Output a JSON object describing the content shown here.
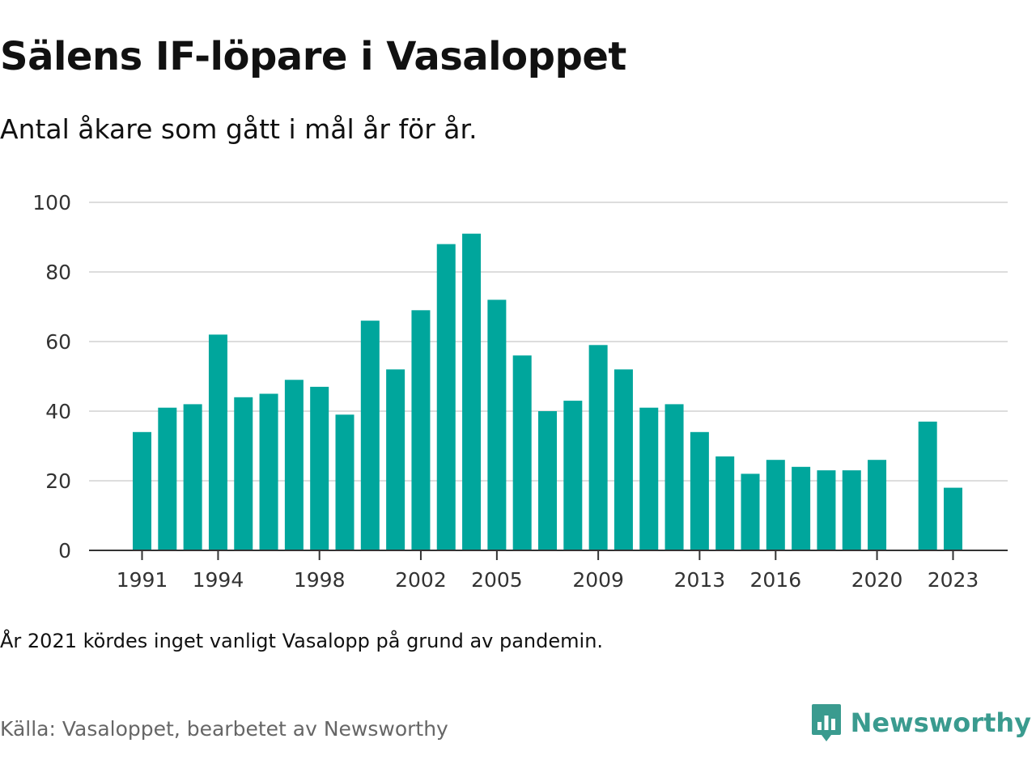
{
  "header": {
    "title": "Sälens IF-löpare i Vasaloppet",
    "subtitle": "Antal åkare som gått i mål år för år."
  },
  "footer": {
    "note": "År 2021 kördes inget vanligt Vasalopp på grund av pandemin.",
    "source": "Källa: Vasaloppet, bearbetet av Newsworthy",
    "brand_name": "Newsworthy",
    "brand_icon": "newsworthy-logo-icon"
  },
  "colors": {
    "bar": "#00a69c",
    "gridline": "#dddddd",
    "axis": "#333333",
    "brand": "#3a9b8f"
  },
  "chart_data": {
    "type": "bar",
    "title": "Sälens IF-löpare i Vasaloppet",
    "subtitle": "Antal åkare som gått i mål år för år.",
    "x": [
      1991,
      1992,
      1993,
      1994,
      1995,
      1996,
      1997,
      1998,
      1999,
      2000,
      2001,
      2002,
      2003,
      2004,
      2005,
      2006,
      2007,
      2008,
      2009,
      2010,
      2011,
      2012,
      2013,
      2014,
      2015,
      2016,
      2017,
      2018,
      2019,
      2020,
      2021,
      2022,
      2023
    ],
    "values": [
      34,
      41,
      42,
      62,
      44,
      45,
      49,
      47,
      39,
      66,
      52,
      69,
      88,
      91,
      72,
      56,
      40,
      43,
      59,
      52,
      41,
      42,
      34,
      27,
      22,
      26,
      24,
      23,
      23,
      26,
      null,
      37,
      18
    ],
    "xticks": [
      1991,
      1994,
      1998,
      2002,
      2005,
      2009,
      2013,
      2016,
      2020,
      2023
    ],
    "yticks": [
      0,
      20,
      40,
      60,
      80,
      100
    ],
    "ylim": [
      0,
      100
    ],
    "grid": true,
    "legend": "none"
  }
}
